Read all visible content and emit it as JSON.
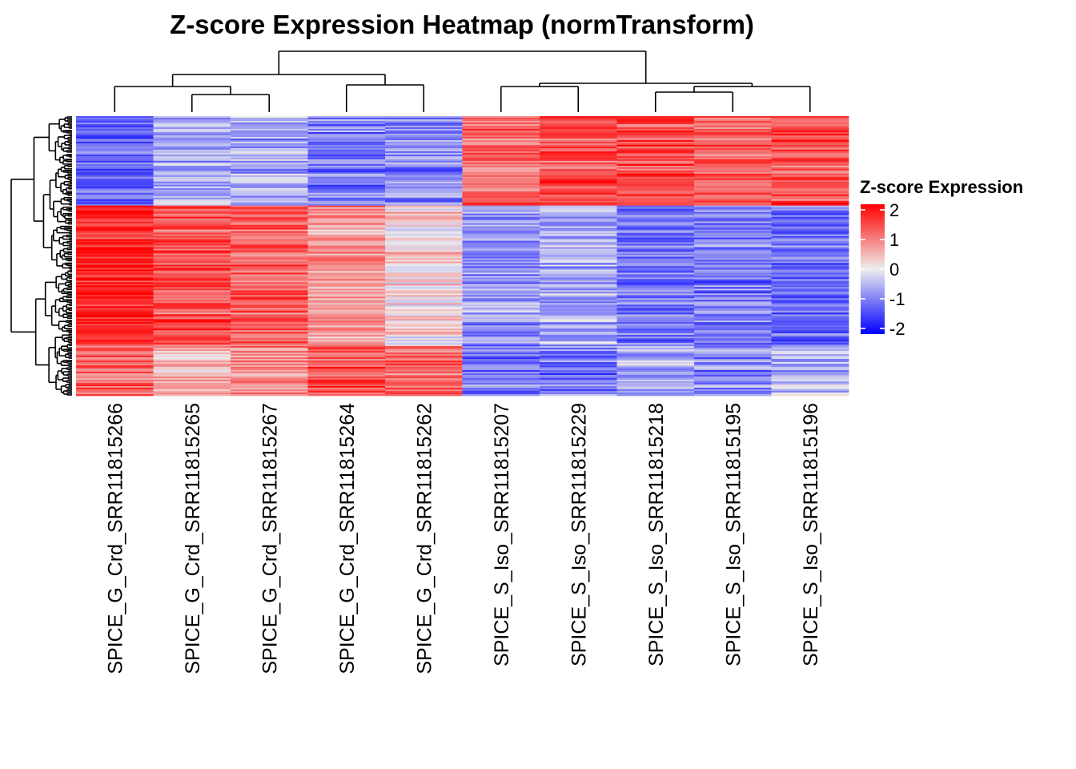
{
  "chart_data": {
    "type": "heatmap",
    "title": "Z-score Expression Heatmap (normTransform)",
    "columns": [
      "SPICE_G_Crd_SRR11815266",
      "SPICE_G_Crd_SRR11815265",
      "SPICE_G_Crd_SRR11815267",
      "SPICE_G_Crd_SRR11815264",
      "SPICE_G_Crd_SRR11815262",
      "SPICE_S_Iso_SRR11815207",
      "SPICE_S_Iso_SRR11815229",
      "SPICE_S_Iso_SRR11815218",
      "SPICE_S_Iso_SRR11815195",
      "SPICE_S_Iso_SRR11815196"
    ],
    "row_clusters": [
      {
        "label": "top block (~32% of rows)",
        "values": [
          -1.2,
          -0.6,
          -0.6,
          -0.9,
          -0.9,
          1.1,
          1.3,
          1.4,
          1.2,
          1.3
        ]
      },
      {
        "label": "middle block (~50% of rows)",
        "values": [
          1.7,
          1.3,
          1.2,
          0.7,
          0.2,
          -0.8,
          -0.6,
          -1.0,
          -1.0,
          -1.1
        ]
      },
      {
        "label": "bottom block (~18% of rows)",
        "values": [
          1.2,
          0.6,
          0.8,
          1.3,
          1.1,
          -1.0,
          -1.0,
          -0.5,
          -0.9,
          -0.5
        ]
      }
    ],
    "legend": {
      "title": "Z-score Expression",
      "ticks": [
        "2",
        "1",
        "0",
        "-1",
        "-2"
      ],
      "range": [
        -2,
        2
      ],
      "colors": {
        "low": "#0000ff",
        "mid": "#eeeeee",
        "high": "#ff0000"
      }
    },
    "column_dendrogram": true,
    "row_dendrogram": true
  }
}
